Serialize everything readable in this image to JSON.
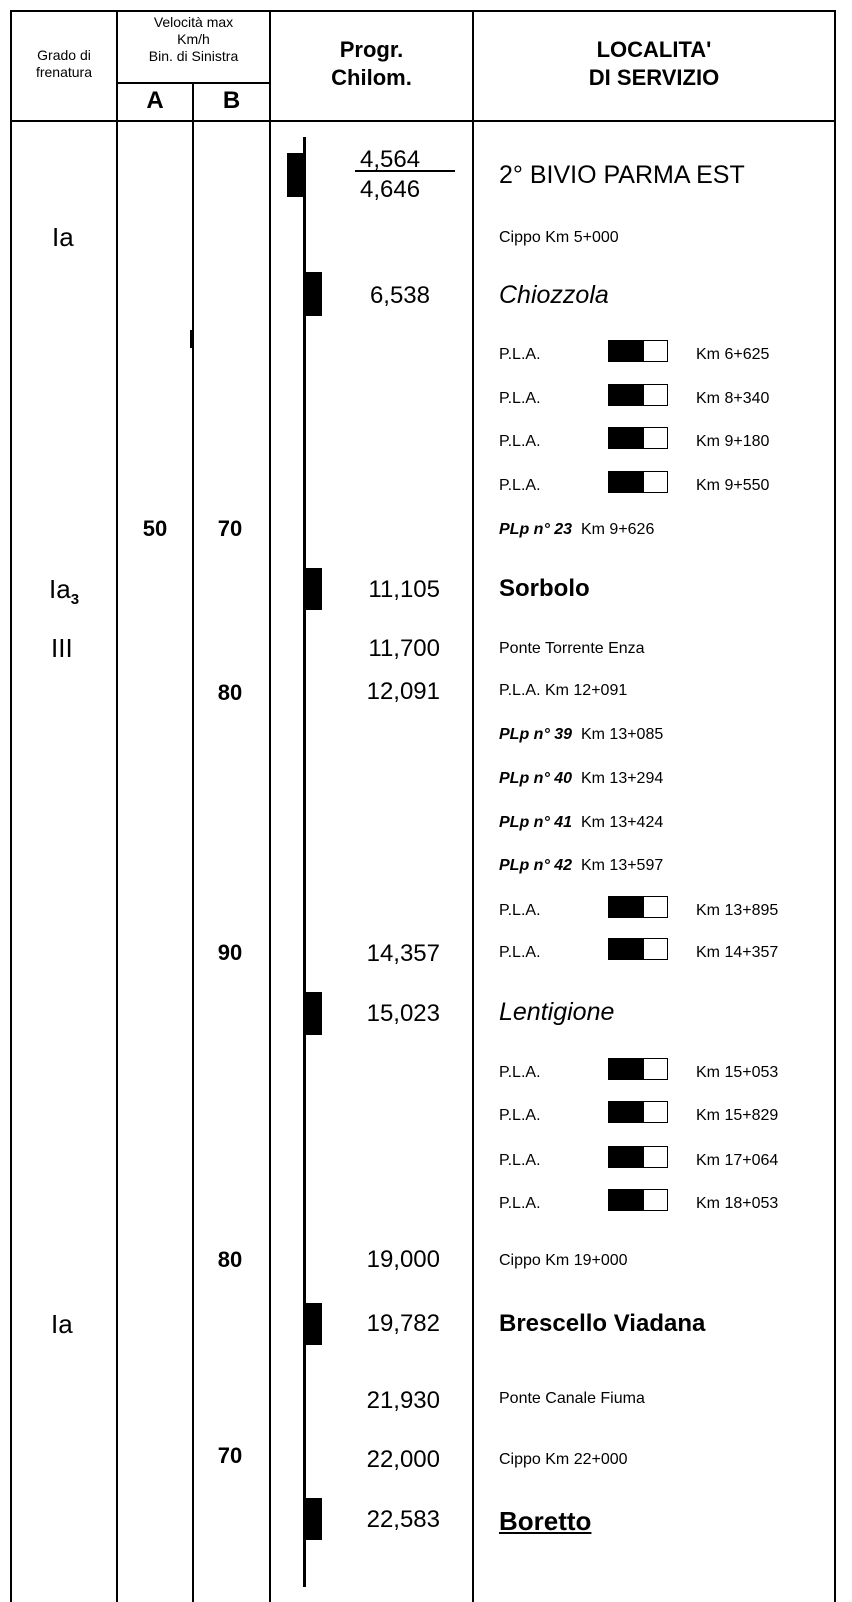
{
  "header": {
    "grade_label_1": "Grado di",
    "grade_label_2": "frenatura",
    "speed_label_1": "Velocità max",
    "speed_label_2": "Km/h",
    "speed_label_3": "Bin. di Sinistra",
    "col_a": "A",
    "col_b": "B",
    "progr_1": "Progr.",
    "progr_2": "Chilom.",
    "loc_1": "LOCALITA'",
    "loc_2": "DI SERVIZIO"
  },
  "grades": {
    "g1": "Ia",
    "g2_main": "Ia",
    "g2_sub": "3",
    "g3": "III",
    "g4": "Ia"
  },
  "speeds": {
    "a1": "50",
    "b1": "70",
    "b2": "80",
    "b3": "90",
    "b4": "80",
    "b5": "70"
  },
  "kms": {
    "k0a": "4,564",
    "k0b": "4,646",
    "k1": "6,538",
    "k2": "11,105",
    "k3": "11,700",
    "k4": "12,091",
    "k5": "14,357",
    "k6": "15,023",
    "k7": "19,000",
    "k8": "19,782",
    "k9": "21,930",
    "k10": "22,000",
    "k11": "22,583"
  },
  "locations": {
    "bivio": "2° BIVIO PARMA EST",
    "cippo5": "Cippo Km 5+000",
    "chiozzola": "Chiozzola",
    "sorbolo": "Sorbolo",
    "ponte_enza": "Ponte Torrente Enza",
    "pla_12091": "P.L.A. Km 12+091",
    "lentigione": "Lentigione",
    "cippo19": "Cippo Km 19+000",
    "brescello": "Brescello Viadana",
    "ponte_fiuma": "Ponte Canale Fiuma",
    "cippo22": "Cippo Km 22+000",
    "boretto": "Boretto"
  },
  "pla_label": "P.L.A.",
  "pla_rows": [
    {
      "km": "Km 6+625"
    },
    {
      "km": "Km 8+340"
    },
    {
      "km": "Km 9+180"
    },
    {
      "km": "Km 9+550"
    },
    {
      "km": "Km 13+895"
    },
    {
      "km": "Km 14+357"
    },
    {
      "km": "Km 15+053"
    },
    {
      "km": "Km 15+829"
    },
    {
      "km": "Km 17+064"
    },
    {
      "km": "Km 18+053"
    }
  ],
  "plp_rows": [
    {
      "num": "PLp n° 23",
      "km": "Km 9+626"
    },
    {
      "num": "PLp n° 39",
      "km": "Km 13+085"
    },
    {
      "num": "PLp n° 40",
      "km": "Km 13+294"
    },
    {
      "num": "PLp n° 41",
      "km": "Km 13+424"
    },
    {
      "num": "PLp n° 42",
      "km": "Km 13+597"
    }
  ]
}
